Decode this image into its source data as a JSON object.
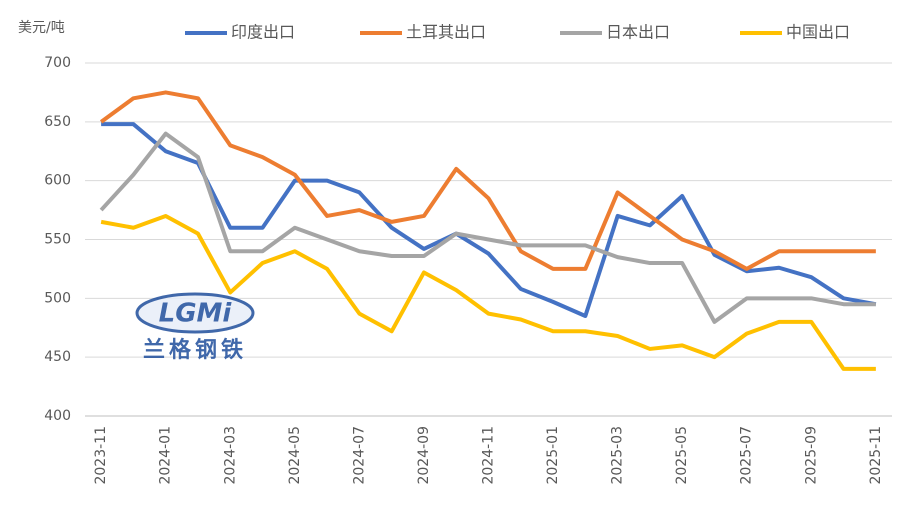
{
  "chart_data": {
    "type": "line",
    "y_label": "美元/吨",
    "watermark": {
      "logo": "LGMi",
      "name": "兰格钢铁"
    },
    "categories": [
      "2023-11",
      null,
      "2024-01",
      null,
      "2024-03",
      null,
      "2024-05",
      null,
      "2024-07",
      null,
      "2024-09",
      null,
      "2024-11",
      null,
      "2025-01",
      null,
      "2025-03",
      null,
      "2025-05",
      null,
      "2025-07",
      null,
      "2025-09",
      null,
      "2025-11"
    ],
    "series": [
      {
        "name": "印度出口",
        "color": "#4472c4",
        "values": [
          648,
          648,
          625,
          615,
          560,
          560,
          600,
          600,
          590,
          560,
          542,
          555,
          538,
          508,
          497,
          485,
          570,
          562,
          587,
          537,
          523,
          526,
          518,
          500,
          495
        ]
      },
      {
        "name": "土耳其出口",
        "color": "#ed7d31",
        "values": [
          650,
          670,
          675,
          670,
          630,
          620,
          605,
          570,
          575,
          565,
          570,
          610,
          585,
          540,
          525,
          525,
          590,
          570,
          550,
          540,
          525,
          540,
          540,
          540,
          540
        ]
      },
      {
        "name": "日本出口",
        "color": "#a5a5a5",
        "values": [
          575,
          605,
          640,
          620,
          540,
          540,
          560,
          550,
          540,
          536,
          536,
          555,
          550,
          545,
          545,
          545,
          535,
          530,
          530,
          480,
          500,
          500,
          500,
          495,
          495
        ]
      },
      {
        "name": "中国出口",
        "color": "#ffc000",
        "values": [
          565,
          560,
          570,
          555,
          505,
          530,
          540,
          525,
          487,
          472,
          522,
          507,
          487,
          482,
          472,
          472,
          468,
          457,
          460,
          450,
          470,
          480,
          480,
          440,
          440
        ]
      }
    ],
    "ylim": [
      400,
      700
    ],
    "yticks": [
      400,
      450,
      500,
      550,
      600,
      650,
      700
    ],
    "grid": true,
    "legend": "top"
  }
}
